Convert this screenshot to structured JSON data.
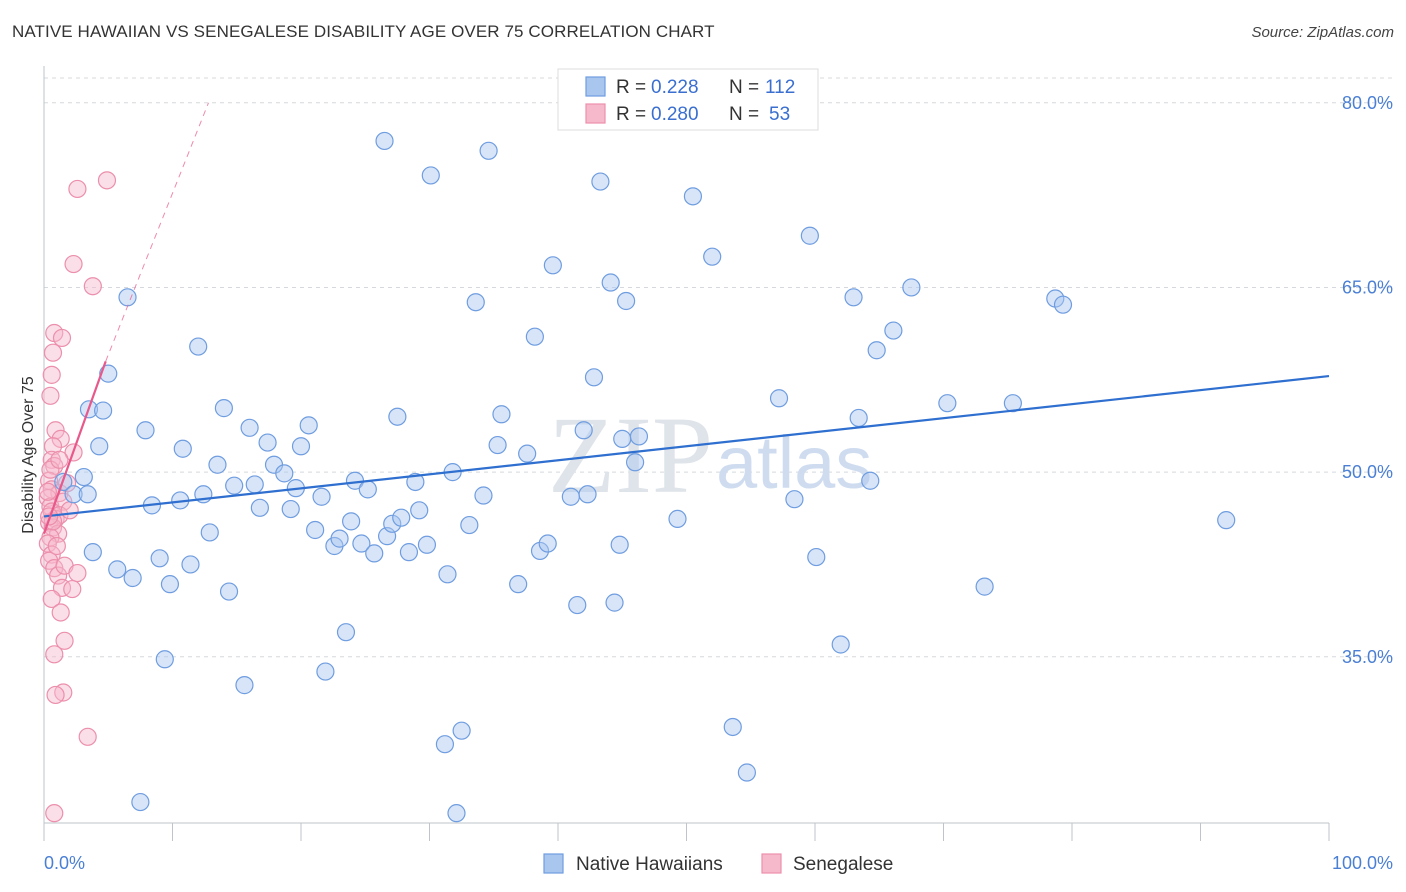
{
  "title": "NATIVE HAWAIIAN VS SENEGALESE DISABILITY AGE OVER 75 CORRELATION CHART",
  "source": "Source: ZipAtlas.com",
  "watermark": {
    "zip": "ZIP",
    "atlas": "atlas"
  },
  "colors": {
    "blue_fill": "#a9c6ef",
    "blue_stroke": "#6f9de0",
    "blue_line": "#2f6fcf",
    "pink_fill": "#f6b9cb",
    "pink_stroke": "#ec8fac",
    "pink_line": "#e8588a",
    "grid": "#d5d9de",
    "tick_text": "#4a7fd4"
  },
  "legend": {
    "rows": [
      {
        "r_label": "R =",
        "r_value": "0.228",
        "n_label": "N =",
        "n_value": "112"
      },
      {
        "r_label": "R =",
        "r_value": "0.280",
        "n_label": "N =",
        "n_value": "53"
      }
    ]
  },
  "chart_data": {
    "type": "scatter",
    "title": "NATIVE HAWAIIAN VS SENEGALESE DISABILITY AGE OVER 75 CORRELATION CHART",
    "xlabel": "",
    "ylabel": "Disability Age Over 75",
    "xlim": [
      0,
      100
    ],
    "ylim": [
      21.5,
      82.5
    ],
    "x_tick_labels": [
      "0.0%",
      "100.0%"
    ],
    "y_ticks": [
      35,
      50,
      65,
      80
    ],
    "y_tick_labels": [
      "35.0%",
      "50.0%",
      "65.0%",
      "80.0%"
    ],
    "grid": true,
    "series": [
      {
        "name": "Native Hawaiians",
        "r": 0.228,
        "n": 112,
        "trend": {
          "x0": 0,
          "y0": 46.4,
          "x1": 100,
          "y1": 57.8
        },
        "points": [
          [
            1.5,
            49.2
          ],
          [
            2.3,
            48.2
          ],
          [
            3.4,
            48.2
          ],
          [
            3.1,
            49.6
          ],
          [
            3.5,
            55.1
          ],
          [
            4.6,
            55.0
          ],
          [
            4.3,
            52.1
          ],
          [
            3.8,
            43.5
          ],
          [
            5.7,
            42.1
          ],
          [
            6.5,
            64.2
          ],
          [
            6.9,
            41.4
          ],
          [
            7.9,
            53.4
          ],
          [
            8.4,
            47.3
          ],
          [
            9.0,
            43.0
          ],
          [
            9.4,
            34.8
          ],
          [
            9.8,
            40.9
          ],
          [
            10.6,
            47.7
          ],
          [
            10.8,
            51.9
          ],
          [
            11.4,
            42.5
          ],
          [
            12.0,
            60.2
          ],
          [
            12.4,
            48.2
          ],
          [
            12.9,
            45.1
          ],
          [
            13.5,
            50.6
          ],
          [
            14.0,
            55.2
          ],
          [
            14.4,
            40.3
          ],
          [
            14.8,
            48.9
          ],
          [
            15.6,
            32.7
          ],
          [
            16.0,
            53.6
          ],
          [
            16.4,
            49.0
          ],
          [
            16.8,
            47.1
          ],
          [
            17.4,
            52.4
          ],
          [
            17.9,
            50.6
          ],
          [
            18.7,
            49.9
          ],
          [
            19.2,
            47.0
          ],
          [
            19.6,
            48.7
          ],
          [
            20.0,
            52.1
          ],
          [
            20.6,
            53.8
          ],
          [
            21.1,
            45.3
          ],
          [
            21.6,
            48.0
          ],
          [
            21.9,
            33.8
          ],
          [
            22.6,
            44.0
          ],
          [
            23.0,
            44.6
          ],
          [
            23.5,
            37.0
          ],
          [
            23.9,
            46.0
          ],
          [
            24.2,
            49.3
          ],
          [
            24.7,
            44.2
          ],
          [
            25.2,
            48.6
          ],
          [
            25.7,
            43.4
          ],
          [
            26.7,
            44.8
          ],
          [
            27.1,
            45.8
          ],
          [
            27.5,
            54.5
          ],
          [
            27.8,
            46.3
          ],
          [
            28.4,
            43.5
          ],
          [
            28.9,
            49.2
          ],
          [
            29.2,
            46.9
          ],
          [
            29.8,
            44.1
          ],
          [
            31.4,
            41.7
          ],
          [
            31.8,
            50.0
          ],
          [
            31.2,
            27.9
          ],
          [
            32.1,
            22.3
          ],
          [
            33.1,
            45.7
          ],
          [
            33.6,
            63.8
          ],
          [
            34.2,
            48.1
          ],
          [
            35.3,
            52.2
          ],
          [
            35.6,
            54.7
          ],
          [
            36.9,
            40.9
          ],
          [
            37.6,
            51.5
          ],
          [
            38.6,
            43.6
          ],
          [
            38.2,
            61.0
          ],
          [
            39.2,
            44.2
          ],
          [
            39.6,
            66.8
          ],
          [
            41.0,
            48.0
          ],
          [
            41.5,
            39.2
          ],
          [
            42.0,
            53.4
          ],
          [
            42.3,
            48.2
          ],
          [
            42.8,
            57.7
          ],
          [
            43.3,
            73.6
          ],
          [
            44.1,
            65.4
          ],
          [
            44.4,
            39.4
          ],
          [
            45.0,
            52.7
          ],
          [
            45.3,
            63.9
          ],
          [
            46.0,
            50.8
          ],
          [
            46.3,
            52.9
          ],
          [
            49.3,
            46.2
          ],
          [
            50.5,
            72.4
          ],
          [
            52.0,
            67.5
          ],
          [
            53.6,
            29.3
          ],
          [
            54.7,
            25.6
          ],
          [
            57.2,
            56.0
          ],
          [
            58.4,
            47.8
          ],
          [
            59.6,
            69.2
          ],
          [
            60.1,
            43.1
          ],
          [
            62.0,
            36.0
          ],
          [
            63.0,
            64.2
          ],
          [
            63.4,
            54.4
          ],
          [
            64.3,
            49.3
          ],
          [
            64.8,
            59.9
          ],
          [
            66.1,
            61.5
          ],
          [
            67.5,
            65.0
          ],
          [
            70.3,
            55.6
          ],
          [
            73.2,
            40.7
          ],
          [
            75.4,
            55.6
          ],
          [
            78.7,
            64.1
          ],
          [
            79.3,
            63.6
          ],
          [
            92.0,
            46.1
          ],
          [
            26.5,
            76.9
          ],
          [
            34.6,
            76.1
          ],
          [
            30.1,
            74.1
          ],
          [
            7.5,
            23.2
          ],
          [
            32.5,
            29.0
          ],
          [
            5.0,
            58.0
          ],
          [
            44.8,
            44.1
          ]
        ]
      },
      {
        "name": "Senegalese",
        "r": 0.28,
        "n": 53,
        "trend": {
          "x0": 0,
          "y0": 45.0,
          "x1": 4.8,
          "y1": 59.0,
          "dash_x1": 12.8,
          "dash_y1": 80.0
        },
        "points": [
          [
            2.6,
            73.0
          ],
          [
            4.9,
            73.7
          ],
          [
            2.3,
            66.9
          ],
          [
            3.8,
            65.1
          ],
          [
            0.8,
            61.3
          ],
          [
            1.4,
            60.9
          ],
          [
            0.7,
            59.7
          ],
          [
            0.6,
            57.9
          ],
          [
            0.5,
            56.2
          ],
          [
            0.9,
            53.4
          ],
          [
            1.3,
            52.7
          ],
          [
            0.7,
            52.1
          ],
          [
            2.3,
            51.6
          ],
          [
            0.6,
            51.0
          ],
          [
            0.8,
            50.5
          ],
          [
            0.4,
            49.3
          ],
          [
            0.6,
            48.6
          ],
          [
            1.2,
            48.3
          ],
          [
            0.3,
            47.9
          ],
          [
            0.5,
            47.2
          ],
          [
            1.5,
            47.6
          ],
          [
            0.6,
            46.8
          ],
          [
            0.9,
            46.2
          ],
          [
            1.2,
            46.5
          ],
          [
            0.4,
            45.9
          ],
          [
            0.7,
            45.5
          ],
          [
            1.1,
            45.0
          ],
          [
            0.5,
            44.7
          ],
          [
            0.3,
            44.2
          ],
          [
            0.6,
            43.3
          ],
          [
            0.4,
            42.8
          ],
          [
            0.8,
            42.2
          ],
          [
            1.1,
            41.6
          ],
          [
            1.6,
            42.4
          ],
          [
            2.6,
            41.8
          ],
          [
            1.4,
            40.6
          ],
          [
            2.2,
            40.5
          ],
          [
            0.6,
            39.7
          ],
          [
            1.3,
            38.6
          ],
          [
            1.6,
            36.3
          ],
          [
            0.8,
            35.2
          ],
          [
            1.5,
            32.1
          ],
          [
            0.9,
            31.9
          ],
          [
            3.4,
            28.5
          ],
          [
            0.8,
            22.3
          ],
          [
            0.3,
            48.4
          ],
          [
            1.8,
            49.1
          ],
          [
            0.5,
            50.2
          ],
          [
            1.0,
            44.0
          ],
          [
            2.0,
            46.9
          ],
          [
            0.7,
            46.0
          ],
          [
            1.2,
            51.0
          ],
          [
            0.4,
            46.4
          ]
        ]
      }
    ]
  },
  "bottom_legend": {
    "items": [
      "Native Hawaiians",
      "Senegalese"
    ]
  }
}
